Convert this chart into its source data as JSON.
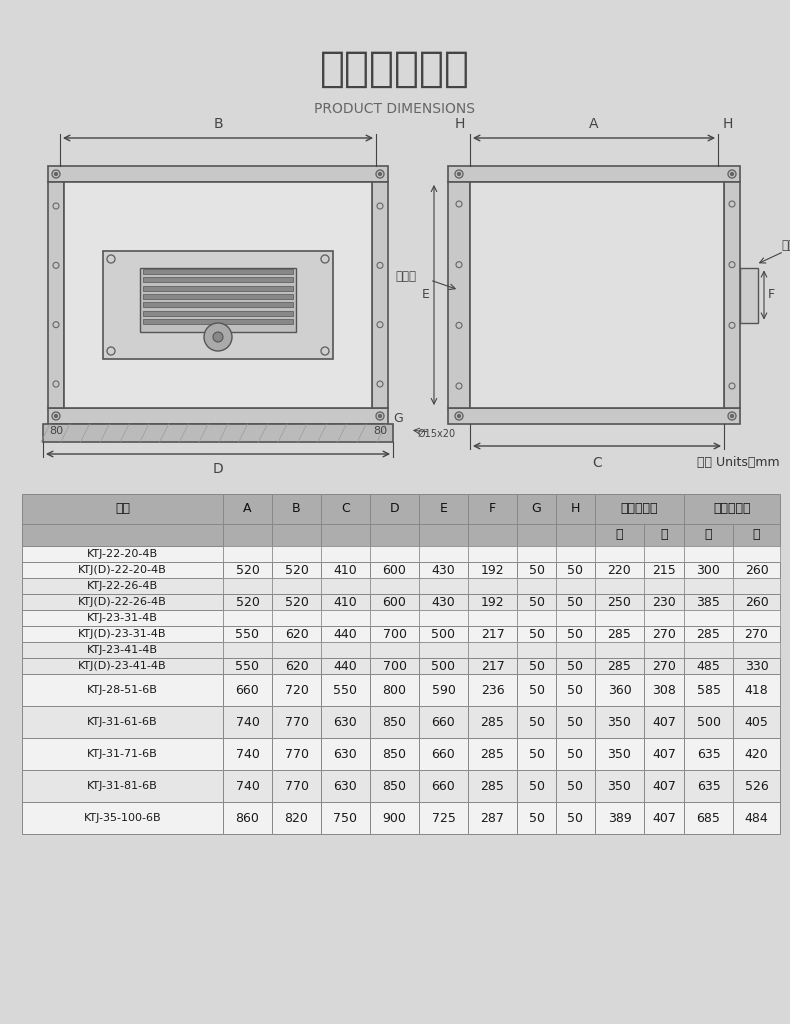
{
  "title_zh": "产品外形尺寸",
  "title_en": "PRODUCT DIMENSIONS",
  "bg_color": "#d8d8d8",
  "table_unit": "单位 Units：mm",
  "rows_data": [
    [
      "KTJ-22-20-4B",
      "KTJ(D)-22-20-4B",
      "520",
      "520",
      "410",
      "600",
      "430",
      "192",
      "50",
      "50",
      "220",
      "215",
      "300",
      "260"
    ],
    [
      "KTJ-22-26-4B",
      "KTJ(D)-22-26-4B",
      "520",
      "520",
      "410",
      "600",
      "430",
      "192",
      "50",
      "50",
      "250",
      "230",
      "385",
      "260"
    ],
    [
      "KTJ-23-31-4B",
      "KTJ(D)-23-31-4B",
      "550",
      "620",
      "440",
      "700",
      "500",
      "217",
      "50",
      "50",
      "285",
      "270",
      "285",
      "270"
    ],
    [
      "KTJ-23-41-4B",
      "KTJ(D)-23-41-4B",
      "550",
      "620",
      "440",
      "700",
      "500",
      "217",
      "50",
      "50",
      "285",
      "270",
      "485",
      "330"
    ],
    [
      "KTJ-28-51-6B",
      null,
      "660",
      "720",
      "550",
      "800",
      "590",
      "236",
      "50",
      "50",
      "360",
      "308",
      "585",
      "418"
    ],
    [
      "KTJ-31-61-6B",
      null,
      "740",
      "770",
      "630",
      "850",
      "660",
      "285",
      "50",
      "50",
      "350",
      "407",
      "500",
      "405"
    ],
    [
      "KTJ-31-71-6B",
      null,
      "740",
      "770",
      "630",
      "850",
      "660",
      "285",
      "50",
      "50",
      "350",
      "407",
      "635",
      "420"
    ],
    [
      "KTJ-31-81-6B",
      null,
      "740",
      "770",
      "630",
      "850",
      "660",
      "285",
      "50",
      "50",
      "350",
      "407",
      "635",
      "526"
    ],
    [
      "KTJ-35-100-6B",
      null,
      "860",
      "820",
      "750",
      "900",
      "725",
      "287",
      "50",
      "50",
      "389",
      "407",
      "685",
      "484"
    ]
  ]
}
